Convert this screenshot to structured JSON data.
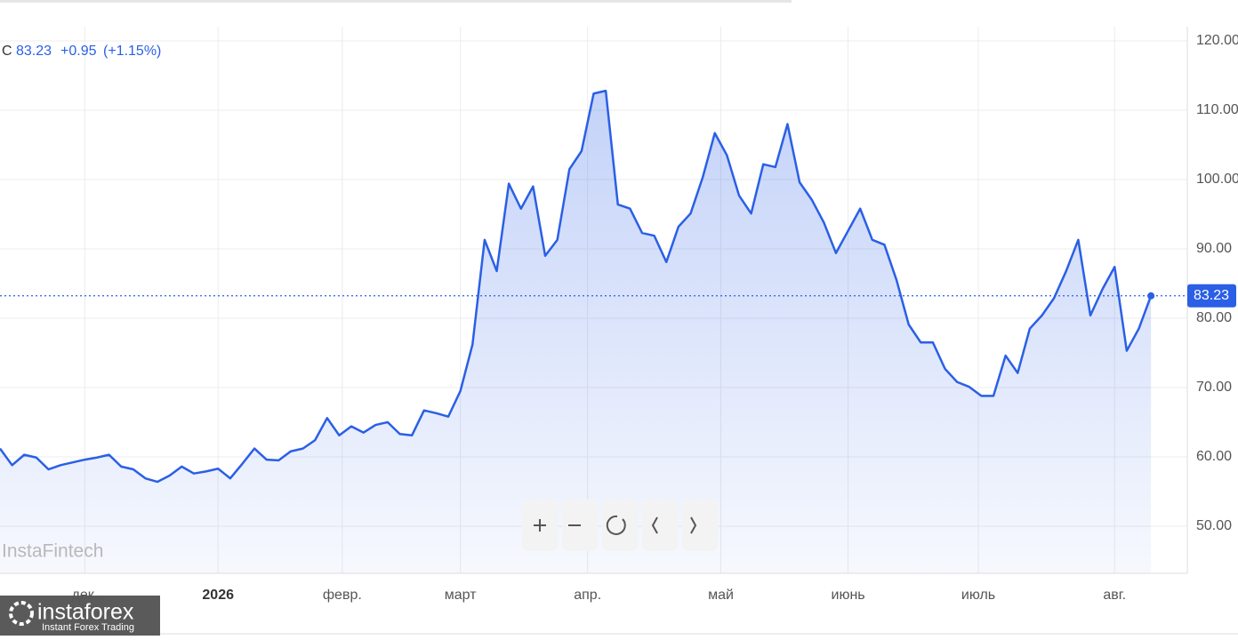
{
  "header": {
    "symbol": "C",
    "change": "+0.95",
    "change_pct": "(+1.15%)"
  },
  "watermark": "InstaFintech",
  "logo": {
    "name": "instaforex",
    "tagline": "Instant Forex Trading"
  },
  "chart_data": {
    "type": "area",
    "x": [
      0,
      2,
      4,
      6,
      8,
      10,
      12,
      14,
      16,
      18,
      20,
      22,
      24,
      26,
      28,
      30,
      32,
      34,
      36,
      38,
      40,
      42,
      44,
      46,
      48,
      50,
      52,
      54,
      56,
      58,
      60,
      62,
      64,
      66,
      68,
      70,
      72,
      74,
      76,
      78,
      80,
      82,
      84,
      86,
      88,
      90,
      92,
      94,
      96,
      98,
      100,
      102,
      104,
      106,
      108,
      110,
      112,
      114,
      116,
      118,
      120,
      122,
      124,
      126,
      128,
      130,
      132,
      134,
      136,
      138,
      140,
      142,
      144,
      146,
      148,
      150,
      152,
      154,
      156,
      158,
      160,
      162,
      164,
      166,
      168,
      170,
      172,
      174,
      176,
      178,
      180,
      182,
      184,
      186,
      188,
      190
    ],
    "series": [
      {
        "color": "#2a5fe6",
        "values": [
          61.2,
          58.8,
          60.3,
          59.9,
          58.2,
          58.8,
          59.2,
          59.6,
          59.9,
          60.3,
          58.6,
          58.2,
          56.9,
          56.4,
          57.3,
          58.6,
          57.6,
          57.9,
          58.3,
          56.9,
          59.0,
          61.2,
          59.6,
          59.5,
          60.8,
          61.2,
          62.4,
          65.6,
          63.1,
          64.4,
          63.5,
          64.6,
          65.0,
          63.3,
          63.1,
          66.7,
          66.3,
          65.8,
          69.5,
          76.2,
          91.3,
          86.8,
          99.4,
          95.8,
          99.0,
          89.0,
          91.3,
          101.5,
          104.1,
          112.4,
          112.8,
          96.4,
          95.8,
          92.3,
          91.9,
          88.1,
          93.2,
          95.1,
          100.3,
          106.7,
          103.5,
          97.7,
          95.1,
          102.2,
          101.8,
          108.0,
          99.6,
          97.1,
          93.8,
          89.4,
          92.6,
          95.8,
          91.3,
          90.6,
          85.5,
          79.1,
          76.5,
          76.5,
          72.7,
          70.8,
          70.1,
          68.8,
          68.8,
          74.6,
          72.1,
          78.5,
          80.4,
          82.9,
          86.8,
          91.3,
          80.4,
          84.2,
          87.4,
          75.3,
          78.5,
          83.23
        ]
      }
    ],
    "xlim": [
      0,
      196
    ],
    "ylim": [
      43.2,
      122.05
    ],
    "xticks": [
      {
        "value": 14,
        "label": "дек."
      },
      {
        "value": 36,
        "label": "2026"
      },
      {
        "value": 56.5,
        "label": "февр."
      },
      {
        "value": 76,
        "label": "март"
      },
      {
        "value": 97,
        "label": "апр."
      },
      {
        "value": 119,
        "label": "май"
      },
      {
        "value": 140,
        "label": "июнь"
      },
      {
        "value": 161.5,
        "label": "июль"
      },
      {
        "value": 184,
        "label": "авг."
      }
    ],
    "yticks": [
      {
        "value": 50,
        "label": "50.00"
      },
      {
        "value": 60,
        "label": "60.00"
      },
      {
        "value": 70,
        "label": "70.00"
      },
      {
        "value": 80,
        "label": "80.00"
      },
      {
        "value": 90,
        "label": "90.00"
      },
      {
        "value": 100,
        "label": "100.00"
      },
      {
        "value": 110,
        "label": "110.00"
      },
      {
        "value": 120,
        "label": "120.00"
      }
    ],
    "grid": true
  }
}
